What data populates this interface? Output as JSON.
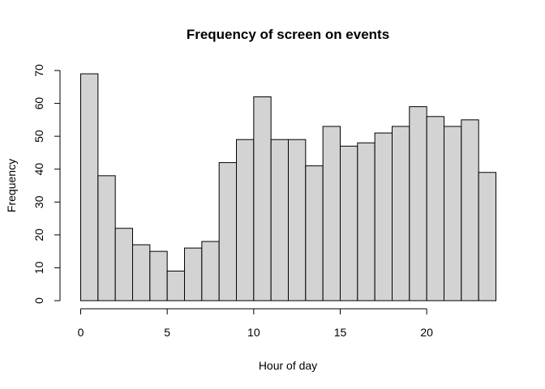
{
  "chart_data": {
    "type": "bar",
    "title": "Frequency of screen on events",
    "xlabel": "Hour of day",
    "ylabel": "Frequency",
    "bin_width": 1,
    "x": [
      0,
      1,
      2,
      3,
      4,
      5,
      6,
      7,
      8,
      9,
      10,
      11,
      12,
      13,
      14,
      15,
      16,
      17,
      18,
      19,
      20,
      21,
      22,
      23
    ],
    "values": [
      69,
      38,
      22,
      17,
      15,
      9,
      16,
      18,
      42,
      49,
      62,
      49,
      49,
      41,
      53,
      47,
      48,
      51,
      53,
      59,
      56,
      53,
      55,
      39
    ],
    "xlim": [
      0,
      24
    ],
    "ylim": [
      0,
      70
    ],
    "x_ticks": [
      0,
      5,
      10,
      15,
      20
    ],
    "y_ticks": [
      0,
      10,
      20,
      30,
      40,
      50,
      60,
      70
    ],
    "bar_color": "#d3d3d3",
    "edge_color": "#000000",
    "grid": false,
    "legend": "none"
  }
}
